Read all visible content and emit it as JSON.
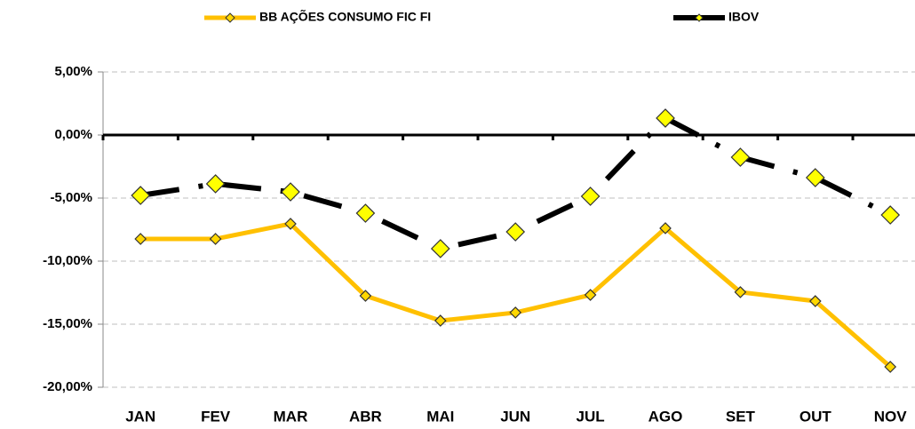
{
  "chart_data": {
    "type": "line",
    "categories": [
      "JAN",
      "FEV",
      "MAR",
      "ABR",
      "MAI",
      "JUN",
      "JUL",
      "AGO",
      "SET",
      "OUT",
      "NOV"
    ],
    "series": [
      {
        "name": "BB AÇÕES CONSUMO FIC FI",
        "color": "#FFC000",
        "marker_color": "#FFD700",
        "values": [
          -8.24,
          -8.24,
          -7.04,
          -12.75,
          -14.72,
          -14.08,
          -12.68,
          -7.39,
          -12.46,
          -13.17,
          -18.38
        ]
      },
      {
        "name": "IBOV",
        "color": "#000000",
        "marker_color": "#FFFF00",
        "values": [
          -4.79,
          -3.87,
          -4.51,
          -6.2,
          -9.01,
          -7.68,
          -4.86,
          1.34,
          -1.76,
          -3.38,
          -6.34
        ]
      }
    ],
    "ylim": [
      -20,
      5
    ],
    "yticks": [
      {
        "value": -20,
        "label": "-20,00%"
      },
      {
        "value": -15,
        "label": "-15,00%"
      },
      {
        "value": -10,
        "label": "-10,00%"
      },
      {
        "value": -5,
        "label": "-5,00%"
      },
      {
        "value": 0,
        "label": "0,00%"
      },
      {
        "value": 5,
        "label": "5,00%"
      }
    ],
    "grid": true
  }
}
